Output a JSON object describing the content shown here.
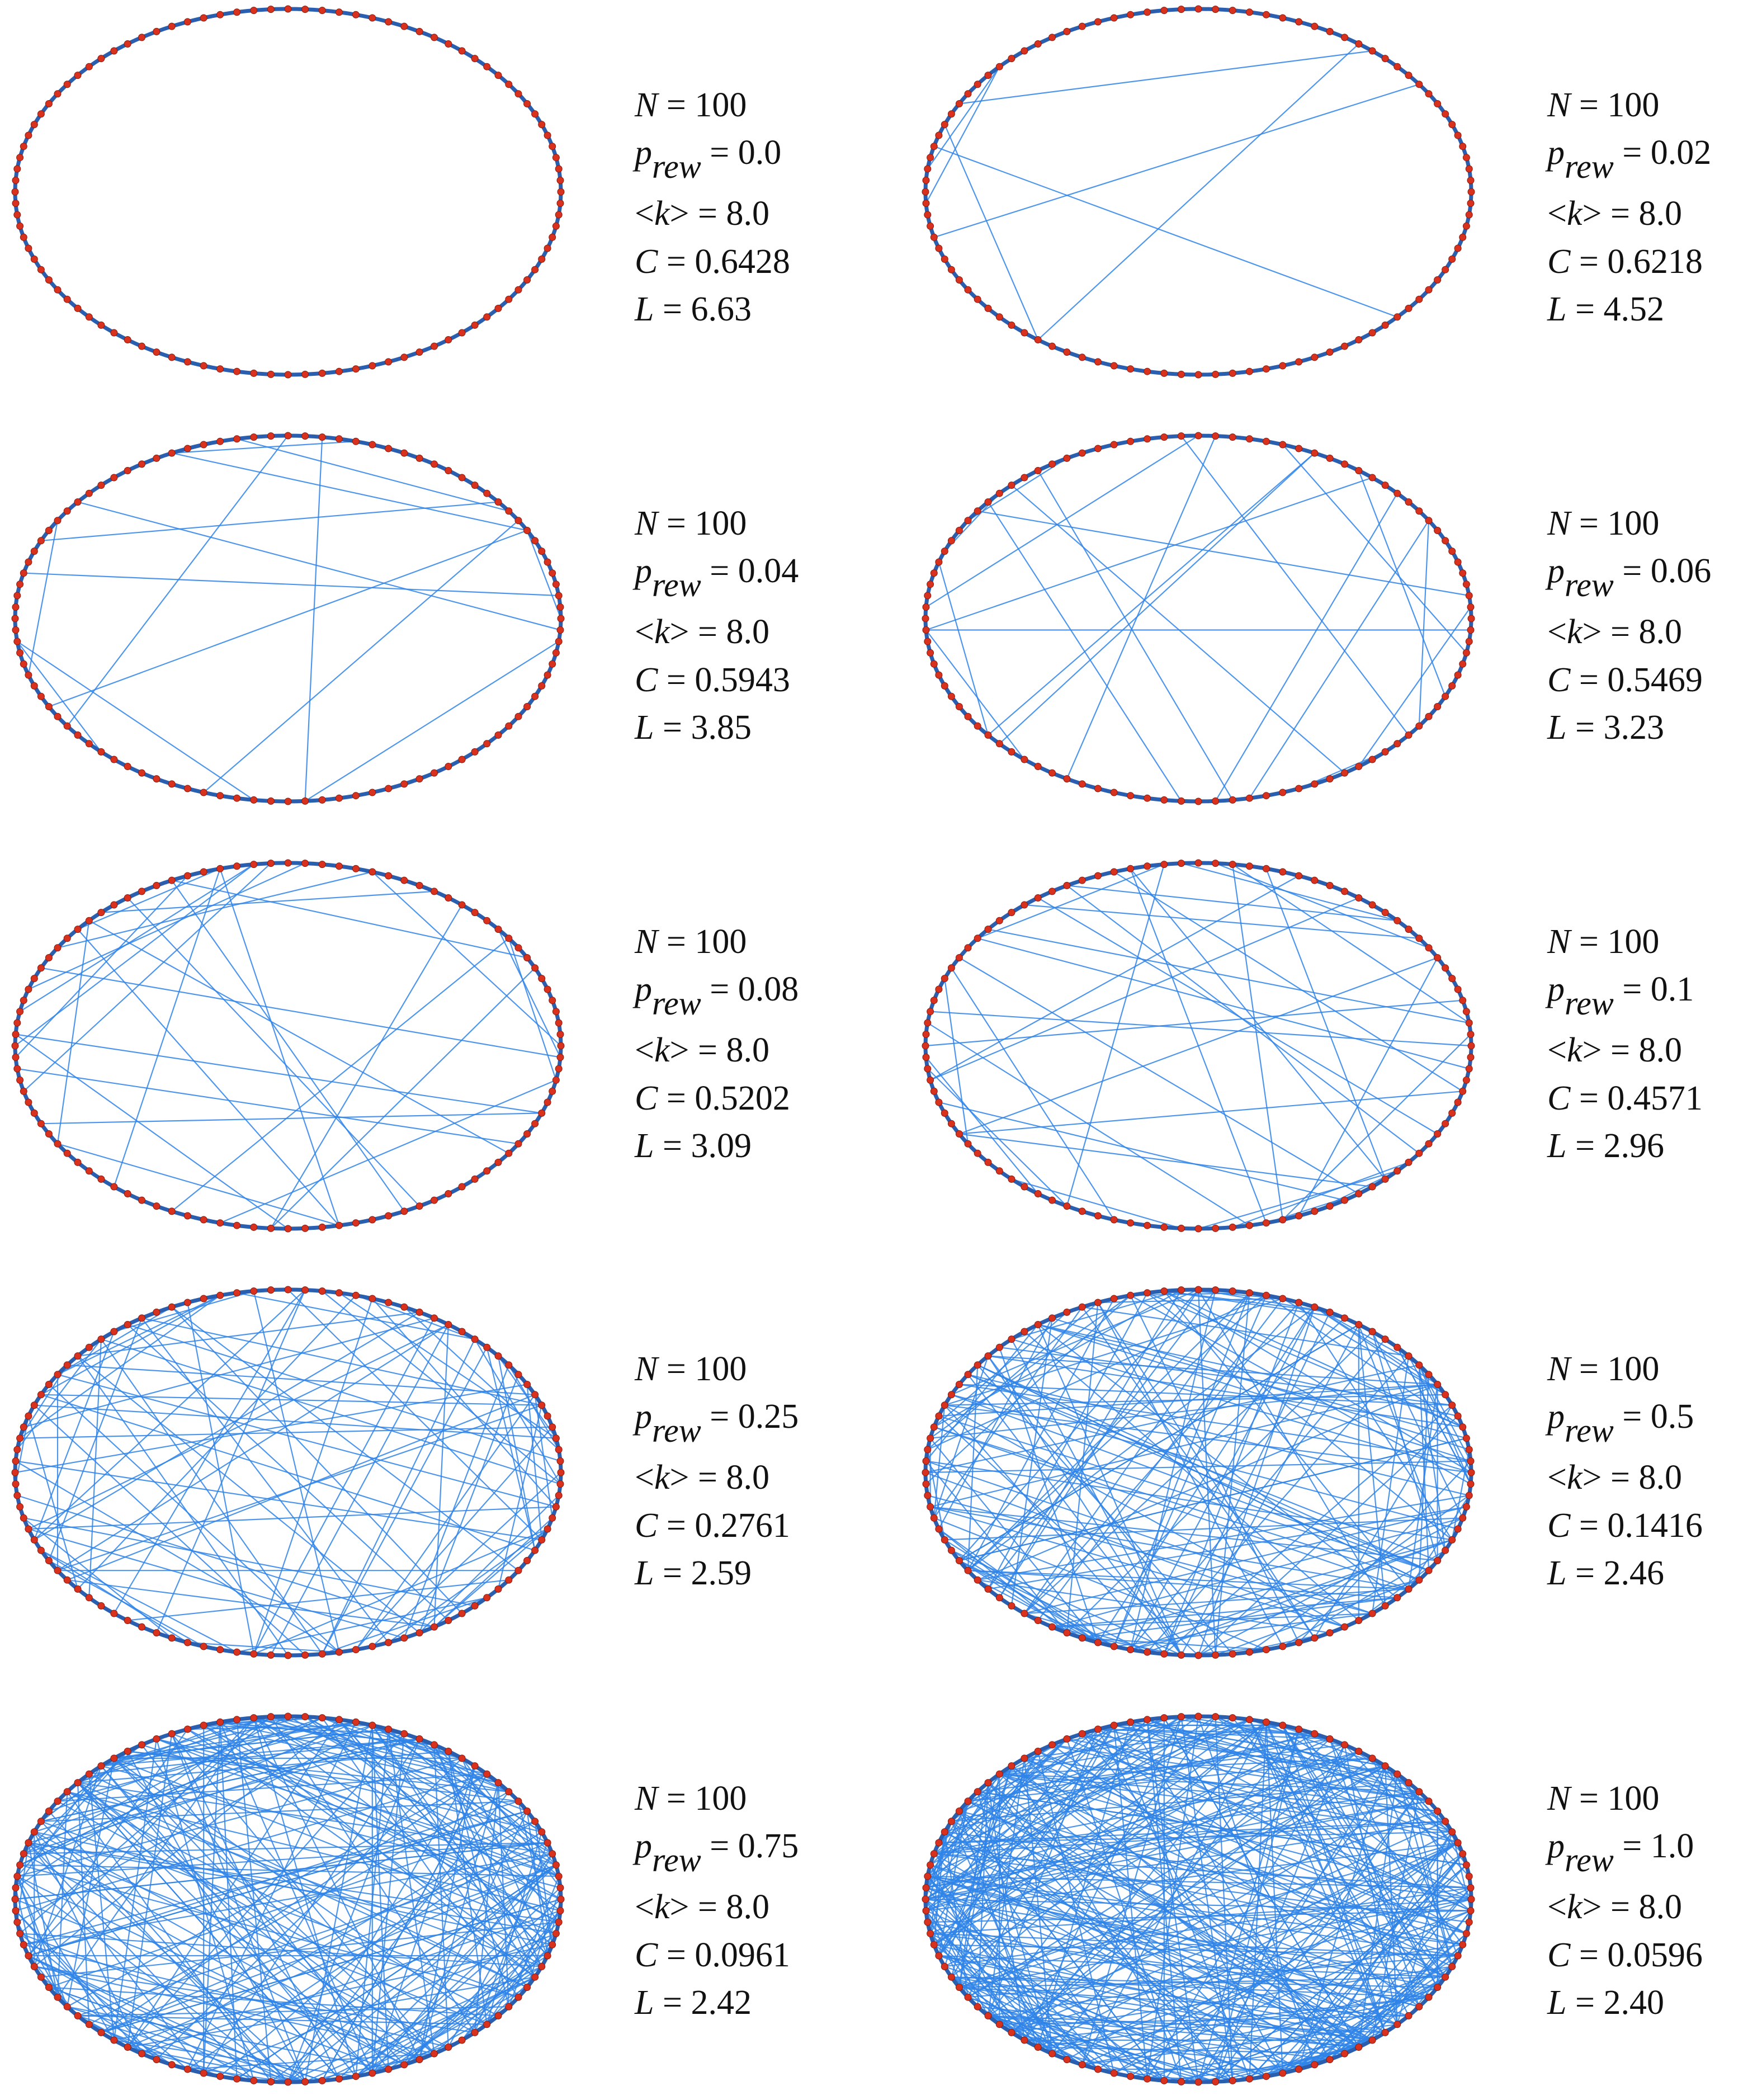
{
  "colors": {
    "node": "#d8311e",
    "node_stroke": "#8a1a0e",
    "edge": "#2f84e8",
    "ring": "#2a5fb0"
  },
  "panels": [
    {
      "N": "100",
      "p_rew": "0.0",
      "k": "8.0",
      "C": "0.6428",
      "L": "6.63",
      "p_value": 0.0
    },
    {
      "N": "100",
      "p_rew": "0.02",
      "k": "8.0",
      "C": "0.6218",
      "L": "4.52",
      "p_value": 0.02
    },
    {
      "N": "100",
      "p_rew": "0.04",
      "k": "8.0",
      "C": "0.5943",
      "L": "3.85",
      "p_value": 0.04
    },
    {
      "N": "100",
      "p_rew": "0.06",
      "k": "8.0",
      "C": "0.5469",
      "L": "3.23",
      "p_value": 0.06
    },
    {
      "N": "100",
      "p_rew": "0.08",
      "k": "8.0",
      "C": "0.5202",
      "L": "3.09",
      "p_value": 0.08
    },
    {
      "N": "100",
      "p_rew": "0.1",
      "k": "8.0",
      "C": "0.4571",
      "L": "2.96",
      "p_value": 0.1
    },
    {
      "N": "100",
      "p_rew": "0.25",
      "k": "8.0",
      "C": "0.2761",
      "L": "2.59",
      "p_value": 0.25
    },
    {
      "N": "100",
      "p_rew": "0.5",
      "k": "8.0",
      "C": "0.1416",
      "L": "2.46",
      "p_value": 0.5
    },
    {
      "N": "100",
      "p_rew": "0.75",
      "k": "8.0",
      "C": "0.0961",
      "L": "2.42",
      "p_value": 0.75
    },
    {
      "N": "100",
      "p_rew": "1.0",
      "k": "8.0",
      "C": "0.0596",
      "L": "2.40",
      "p_value": 1.0
    }
  ]
}
